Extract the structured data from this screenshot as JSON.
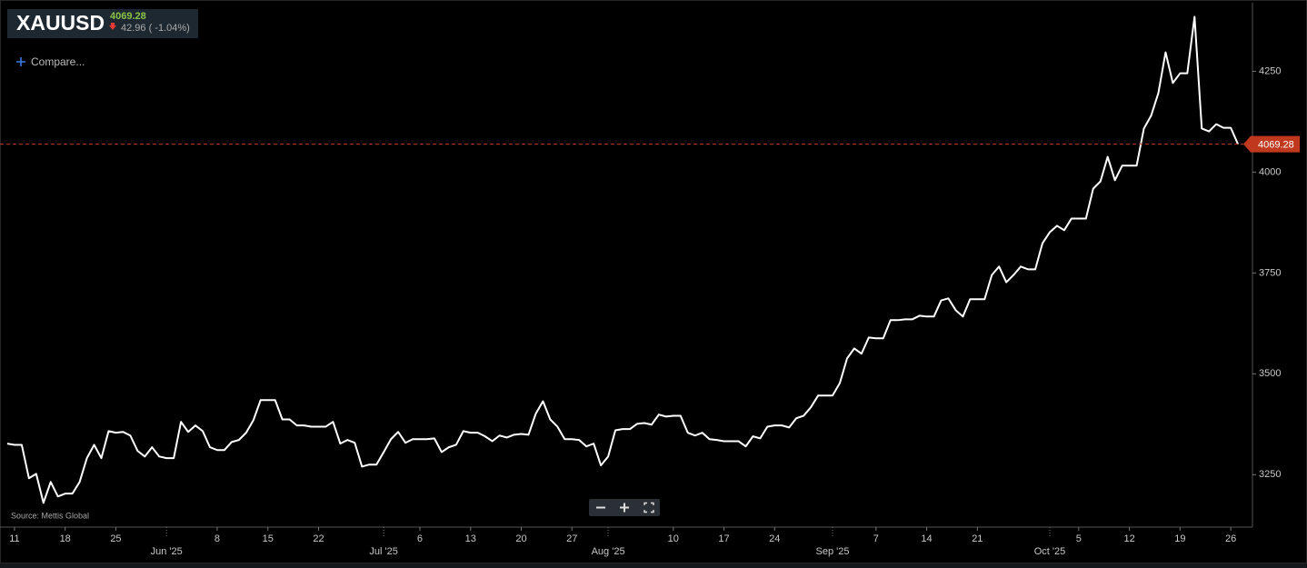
{
  "header": {
    "change": "42.96 ( -1.04%)",
    "compare": "Compare...",
    "source": "Source: Mettis Global"
  },
  "chart_data": {
    "type": "line",
    "x": [
      "2025-05-10",
      "2025-05-11",
      "2025-05-12",
      "2025-05-13",
      "2025-05-14",
      "2025-05-15",
      "2025-05-16",
      "2025-05-17",
      "2025-05-18",
      "2025-05-19",
      "2025-05-20",
      "2025-05-21",
      "2025-05-22",
      "2025-05-23",
      "2025-05-24",
      "2025-05-25",
      "2025-05-26",
      "2025-05-27",
      "2025-05-28",
      "2025-05-29",
      "2025-05-30",
      "2025-05-31",
      "2025-06-01",
      "2025-06-02",
      "2025-06-03",
      "2025-06-04",
      "2025-06-05",
      "2025-06-06",
      "2025-06-07",
      "2025-06-08",
      "2025-06-09",
      "2025-06-10",
      "2025-06-11",
      "2025-06-12",
      "2025-06-13",
      "2025-06-14",
      "2025-06-15",
      "2025-06-16",
      "2025-06-17",
      "2025-06-18",
      "2025-06-19",
      "2025-06-20",
      "2025-06-21",
      "2025-06-22",
      "2025-06-23",
      "2025-06-24",
      "2025-06-25",
      "2025-06-26",
      "2025-06-27",
      "2025-06-28",
      "2025-06-29",
      "2025-06-30",
      "2025-07-01",
      "2025-07-02",
      "2025-07-03",
      "2025-07-04",
      "2025-07-05",
      "2025-07-06",
      "2025-07-07",
      "2025-07-08",
      "2025-07-09",
      "2025-07-10",
      "2025-07-11",
      "2025-07-12",
      "2025-07-13",
      "2025-07-14",
      "2025-07-15",
      "2025-07-16",
      "2025-07-17",
      "2025-07-18",
      "2025-07-19",
      "2025-07-20",
      "2025-07-21",
      "2025-07-22",
      "2025-07-23",
      "2025-07-24",
      "2025-07-25",
      "2025-07-26",
      "2025-07-27",
      "2025-07-28",
      "2025-07-29",
      "2025-07-30",
      "2025-07-31",
      "2025-08-01",
      "2025-08-02",
      "2025-08-03",
      "2025-08-04",
      "2025-08-05",
      "2025-08-06",
      "2025-08-07",
      "2025-08-08",
      "2025-08-09",
      "2025-08-10",
      "2025-08-11",
      "2025-08-12",
      "2025-08-13",
      "2025-08-14",
      "2025-08-15",
      "2025-08-16",
      "2025-08-17",
      "2025-08-18",
      "2025-08-19",
      "2025-08-20",
      "2025-08-21",
      "2025-08-22",
      "2025-08-23",
      "2025-08-24",
      "2025-08-25",
      "2025-08-26",
      "2025-08-27",
      "2025-08-28",
      "2025-08-29",
      "2025-08-30",
      "2025-08-31",
      "2025-09-01",
      "2025-09-02",
      "2025-09-03",
      "2025-09-04",
      "2025-09-05",
      "2025-09-06",
      "2025-09-07",
      "2025-09-08",
      "2025-09-09",
      "2025-09-10",
      "2025-09-11",
      "2025-09-12",
      "2025-09-13",
      "2025-09-14",
      "2025-09-15",
      "2025-09-16",
      "2025-09-17",
      "2025-09-18",
      "2025-09-19",
      "2025-09-20",
      "2025-09-21",
      "2025-09-22",
      "2025-09-23",
      "2025-09-24",
      "2025-09-25",
      "2025-09-26",
      "2025-09-27",
      "2025-09-28",
      "2025-09-29",
      "2025-09-30",
      "2025-10-01",
      "2025-10-02",
      "2025-10-03",
      "2025-10-04",
      "2025-10-05",
      "2025-10-06",
      "2025-10-07",
      "2025-10-08",
      "2025-10-09",
      "2025-10-10",
      "2025-10-11",
      "2025-10-12",
      "2025-10-13",
      "2025-10-14",
      "2025-10-15",
      "2025-10-16",
      "2025-10-17",
      "2025-10-18",
      "2025-10-19",
      "2025-10-20",
      "2025-10-21",
      "2025-10-22",
      "2025-10-23",
      "2025-10-24",
      "2025-10-25",
      "2025-10-26",
      "2025-10-27"
    ],
    "series": [
      {
        "name": "XAUUSD",
        "color": "#ffffff",
        "values": [
          3327,
          3324,
          3324,
          3241,
          3252,
          3180,
          3232,
          3196,
          3203,
          3203,
          3232,
          3291,
          3324,
          3291,
          3358,
          3354,
          3356,
          3347,
          3309,
          3295,
          3318,
          3295,
          3291,
          3291,
          3381,
          3356,
          3372,
          3358,
          3318,
          3311,
          3311,
          3331,
          3336,
          3354,
          3385,
          3435,
          3435,
          3435,
          3387,
          3387,
          3372,
          3372,
          3369,
          3369,
          3369,
          3381,
          3327,
          3336,
          3329,
          3270,
          3275,
          3275,
          3306,
          3338,
          3356,
          3329,
          3338,
          3338,
          3338,
          3340,
          3306,
          3318,
          3324,
          3358,
          3354,
          3354,
          3345,
          3333,
          3347,
          3342,
          3349,
          3351,
          3349,
          3401,
          3432,
          3387,
          3369,
          3338,
          3338,
          3336,
          3320,
          3327,
          3273,
          3295,
          3360,
          3363,
          3363,
          3376,
          3378,
          3374,
          3399,
          3394,
          3396,
          3396,
          3354,
          3347,
          3354,
          3338,
          3336,
          3333,
          3333,
          3333,
          3320,
          3345,
          3340,
          3369,
          3372,
          3372,
          3367,
          3390,
          3396,
          3417,
          3446,
          3446,
          3446,
          3477,
          3538,
          3563,
          3550,
          3590,
          3588,
          3588,
          3633,
          3633,
          3635,
          3635,
          3644,
          3642,
          3642,
          3682,
          3687,
          3658,
          3642,
          3685,
          3685,
          3685,
          3745,
          3766,
          3727,
          3745,
          3766,
          3759,
          3759,
          3824,
          3851,
          3867,
          3856,
          3885,
          3885,
          3885,
          3959,
          3977,
          4038,
          3980,
          4016,
          4016,
          4016,
          4108,
          4140,
          4196,
          4297,
          4221,
          4245,
          4245,
          4385,
          4108,
          4101,
          4119,
          4110,
          4110,
          4069.28
        ]
      }
    ],
    "xlim": [
      "2025-05-09",
      "2025-10-29"
    ],
    "xticks": [
      {
        "value": "2025-05-11",
        "label": "11"
      },
      {
        "value": "2025-05-18",
        "label": "18"
      },
      {
        "value": "2025-05-25",
        "label": "25"
      },
      {
        "value": "2025-06-01",
        "label": "Jun '25"
      },
      {
        "value": "2025-06-08",
        "label": "8"
      },
      {
        "value": "2025-06-15",
        "label": "15"
      },
      {
        "value": "2025-06-22",
        "label": "22"
      },
      {
        "value": "2025-07-01",
        "label": "Jul '25"
      },
      {
        "value": "2025-07-06",
        "label": "6"
      },
      {
        "value": "2025-07-13",
        "label": "13"
      },
      {
        "value": "2025-07-20",
        "label": "20"
      },
      {
        "value": "2025-07-27",
        "label": "27"
      },
      {
        "value": "2025-08-01",
        "label": "Aug '25"
      },
      {
        "value": "2025-08-10",
        "label": "10"
      },
      {
        "value": "2025-08-17",
        "label": "17"
      },
      {
        "value": "2025-08-24",
        "label": "24"
      },
      {
        "value": "2025-09-01",
        "label": "Sep '25"
      },
      {
        "value": "2025-09-07",
        "label": "7"
      },
      {
        "value": "2025-09-14",
        "label": "14"
      },
      {
        "value": "2025-09-21",
        "label": "21"
      },
      {
        "value": "2025-10-01",
        "label": "Oct '25"
      },
      {
        "value": "2025-10-05",
        "label": "5"
      },
      {
        "value": "2025-10-12",
        "label": "12"
      },
      {
        "value": "2025-10-19",
        "label": "19"
      },
      {
        "value": "2025-10-26",
        "label": "26"
      }
    ],
    "ylim": [
      3120,
      4420
    ],
    "yticks": [
      3250,
      3500,
      3750,
      4000,
      4250
    ],
    "last_price_color": "#c0391f",
    "up_color": "#8bc34a",
    "down_color": "#e53935"
  }
}
